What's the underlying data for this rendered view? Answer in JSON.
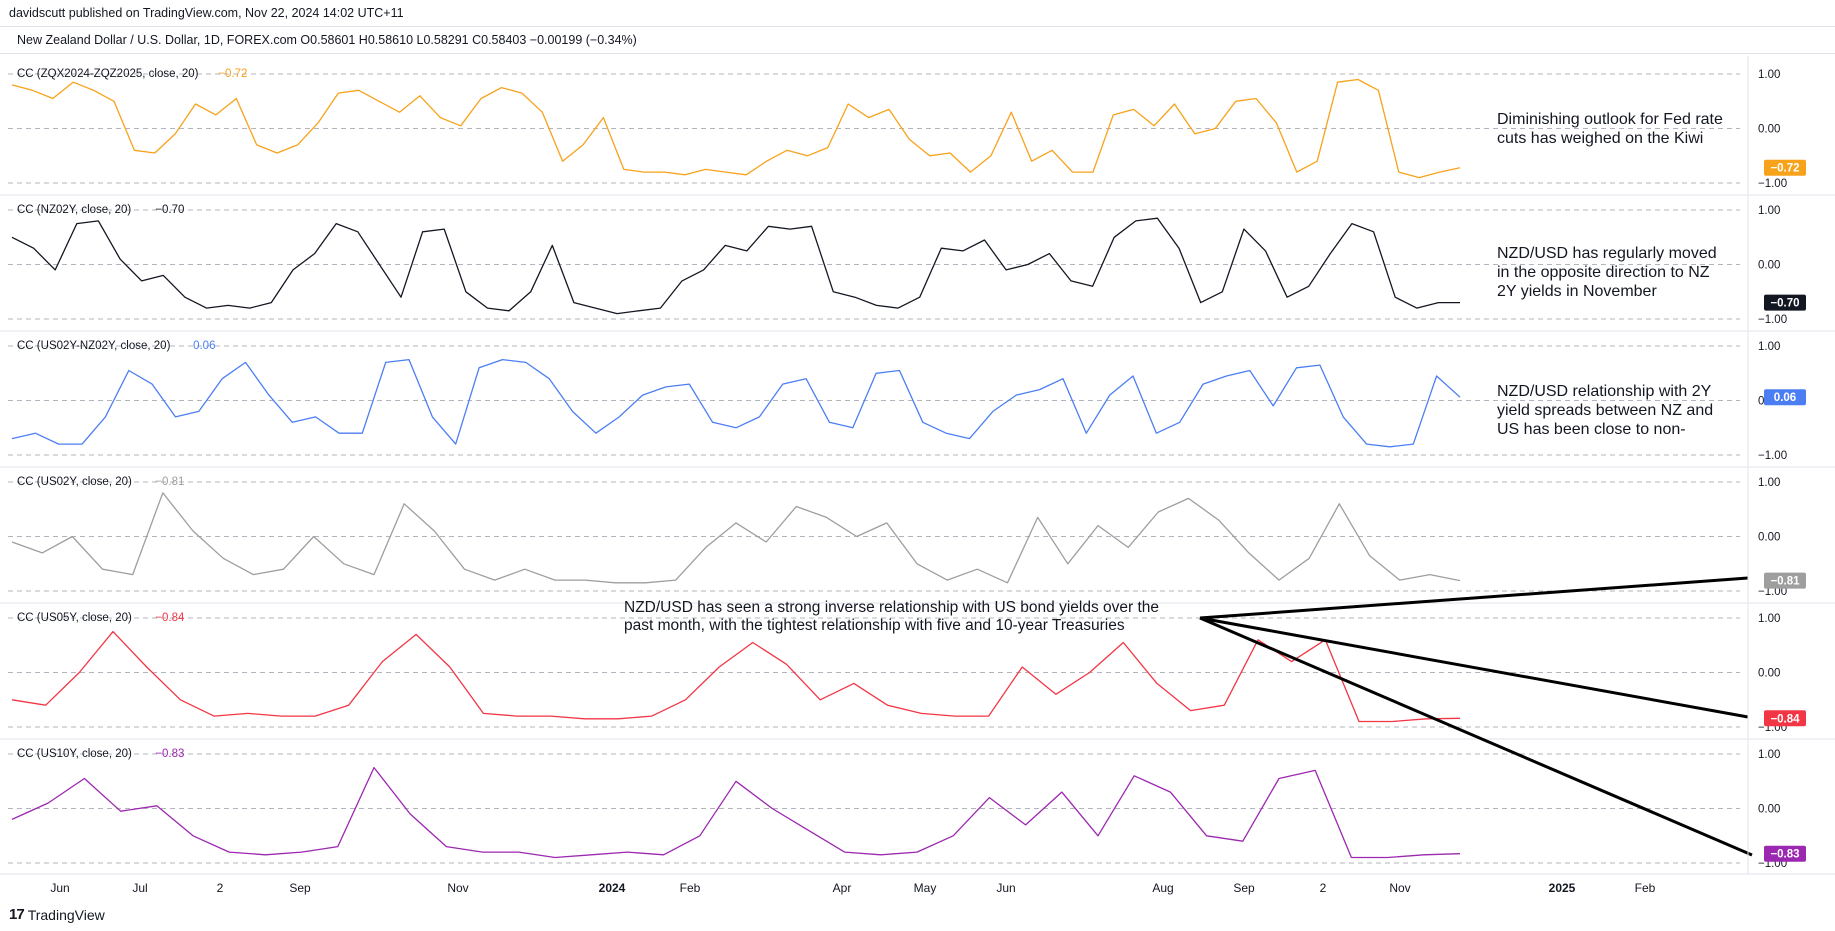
{
  "header": {
    "publisher": "davidscutt published on TradingView.com, Nov 22, 2024 14:02 UTC+11",
    "symbol_line": "New Zealand Dollar / U.S. Dollar, 1D, FOREX.com  O0.58601  H0.58610  L0.58291  C0.58403  −0.00199 (−0.34%)"
  },
  "footer": {
    "logo_glyph": "17",
    "brand": "TradingView"
  },
  "colors": {
    "orange": "#f7a21b",
    "black": "#131722",
    "blue": "#4c7ef3",
    "gray": "#9e9e9e",
    "red": "#f23645",
    "purple": "#9c27b0",
    "grid": "#b2b5be"
  },
  "chart_data": {
    "type": "line",
    "x_axis_labels": [
      "Jun",
      "Jul",
      "2",
      "Sep",
      "Nov",
      "2024",
      "Feb",
      "Apr",
      "May",
      "Jun",
      "Aug",
      "Sep",
      "2",
      "Nov",
      "2025",
      "Feb"
    ],
    "ylim": [
      -1,
      1
    ],
    "y_ticks": [
      "1.00",
      "0.00",
      "−1.00"
    ],
    "panes": [
      {
        "label": "CC (ZQX2024-ZQZ2025, close, 20)",
        "value_label": "−0.72",
        "color": "#f7a21b",
        "badge": "−0.72",
        "annotation": [
          "Diminishing outlook for Fed rate",
          "cuts has weighed on the Kiwi"
        ],
        "values": [
          0.8,
          0.7,
          0.55,
          0.85,
          0.7,
          0.5,
          -0.4,
          -0.45,
          -0.1,
          0.45,
          0.25,
          0.55,
          -0.3,
          -0.45,
          -0.3,
          0.1,
          0.65,
          0.7,
          0.5,
          0.3,
          0.6,
          0.2,
          0.05,
          0.55,
          0.75,
          0.65,
          0.3,
          -0.6,
          -0.3,
          0.2,
          -0.75,
          -0.8,
          -0.8,
          -0.85,
          -0.75,
          -0.8,
          -0.85,
          -0.6,
          -0.4,
          -0.5,
          -0.35,
          0.45,
          0.2,
          0.35,
          -0.2,
          -0.5,
          -0.45,
          -0.8,
          -0.5,
          0.3,
          -0.6,
          -0.4,
          -0.8,
          -0.8,
          0.25,
          0.35,
          0.05,
          0.45,
          -0.1,
          0.0,
          0.5,
          0.55,
          0.1,
          -0.8,
          -0.6,
          0.85,
          0.9,
          0.7,
          -0.8,
          -0.9,
          -0.8,
          -0.72
        ]
      },
      {
        "label": "CC (NZ02Y, close, 20)",
        "value_label": "−0.70",
        "color": "#131722",
        "badge": "−0.70",
        "annotation": [
          "NZD/USD has regularly moved",
          "in the opposite direction to NZ",
          "2Y yields in November"
        ],
        "values": [
          0.5,
          0.3,
          -0.1,
          0.75,
          0.8,
          0.1,
          -0.3,
          -0.2,
          -0.6,
          -0.8,
          -0.75,
          -0.8,
          -0.7,
          -0.1,
          0.2,
          0.75,
          0.6,
          0.0,
          -0.6,
          0.6,
          0.65,
          -0.5,
          -0.8,
          -0.85,
          -0.5,
          0.35,
          -0.7,
          -0.8,
          -0.9,
          -0.85,
          -0.8,
          -0.3,
          -0.1,
          0.35,
          0.25,
          0.7,
          0.65,
          0.7,
          -0.5,
          -0.6,
          -0.75,
          -0.8,
          -0.6,
          0.3,
          0.25,
          0.45,
          -0.1,
          0.0,
          0.2,
          -0.3,
          -0.4,
          0.5,
          0.8,
          0.85,
          0.3,
          -0.7,
          -0.5,
          0.65,
          0.25,
          -0.6,
          -0.4,
          0.2,
          0.75,
          0.6,
          -0.6,
          -0.8,
          -0.7,
          -0.7
        ]
      },
      {
        "label": "CC (US02Y-NZ02Y, close, 20)",
        "value_label": "0.06",
        "color": "#4c7ef3",
        "badge": "0.06",
        "annotation": [
          "NZD/USD relationship with 2Y",
          "yield spreads between NZ and",
          "US has been close to non-"
        ],
        "values": [
          -0.7,
          -0.6,
          -0.8,
          -0.8,
          -0.3,
          0.55,
          0.3,
          -0.3,
          -0.2,
          0.4,
          0.7,
          0.1,
          -0.4,
          -0.3,
          -0.6,
          -0.6,
          0.7,
          0.75,
          -0.3,
          -0.8,
          0.6,
          0.75,
          0.7,
          0.4,
          -0.2,
          -0.6,
          -0.3,
          0.1,
          0.25,
          0.3,
          -0.4,
          -0.5,
          -0.3,
          0.3,
          0.4,
          -0.4,
          -0.5,
          0.5,
          0.55,
          -0.4,
          -0.6,
          -0.7,
          -0.2,
          0.1,
          0.2,
          0.4,
          -0.6,
          0.1,
          0.45,
          -0.6,
          -0.4,
          0.3,
          0.45,
          0.55,
          -0.1,
          0.6,
          0.65,
          -0.3,
          -0.8,
          -0.85,
          -0.8,
          0.45,
          0.06
        ]
      },
      {
        "label": "CC (US02Y, close, 20)",
        "value_label": "−0.81",
        "color": "#9e9e9e",
        "badge": "−0.81",
        "values": [
          -0.1,
          -0.3,
          0.0,
          -0.6,
          -0.7,
          0.8,
          0.1,
          -0.4,
          -0.7,
          -0.6,
          0.0,
          -0.5,
          -0.7,
          0.6,
          0.1,
          -0.6,
          -0.8,
          -0.6,
          -0.8,
          -0.8,
          -0.85,
          -0.85,
          -0.8,
          -0.2,
          0.25,
          -0.1,
          0.55,
          0.35,
          0.0,
          0.25,
          -0.5,
          -0.8,
          -0.6,
          -0.85,
          0.35,
          -0.5,
          0.2,
          -0.2,
          0.45,
          0.7,
          0.3,
          -0.3,
          -0.8,
          -0.4,
          0.6,
          -0.35,
          -0.8,
          -0.7,
          -0.81
        ]
      },
      {
        "label": "CC (US05Y, close, 20)",
        "value_label": "−0.84",
        "color": "#f23645",
        "badge": "−0.84",
        "annotation": [
          "NZD/USD has seen a strong inverse relationship with US bond yields over the",
          "past month, with the tightest relationship with five and 10-year Treasuries"
        ],
        "values": [
          -0.5,
          -0.6,
          0.0,
          0.75,
          0.1,
          -0.5,
          -0.8,
          -0.75,
          -0.8,
          -0.8,
          -0.6,
          0.2,
          0.7,
          0.1,
          -0.75,
          -0.8,
          -0.8,
          -0.85,
          -0.85,
          -0.8,
          -0.5,
          0.1,
          0.55,
          0.15,
          -0.5,
          -0.2,
          -0.6,
          -0.75,
          -0.8,
          -0.8,
          0.1,
          -0.4,
          0.0,
          0.55,
          -0.2,
          -0.7,
          -0.6,
          0.6,
          0.2,
          0.6,
          -0.9,
          -0.9,
          -0.85,
          -0.84
        ]
      },
      {
        "label": "CC (US10Y, close, 20)",
        "value_label": "−0.83",
        "color": "#9c27b0",
        "badge": "−0.83",
        "values": [
          -0.2,
          0.1,
          0.55,
          -0.05,
          0.05,
          -0.5,
          -0.8,
          -0.85,
          -0.8,
          -0.7,
          0.75,
          -0.1,
          -0.7,
          -0.8,
          -0.8,
          -0.9,
          -0.85,
          -0.8,
          -0.85,
          -0.5,
          0.5,
          0.0,
          -0.4,
          -0.8,
          -0.85,
          -0.8,
          -0.5,
          0.2,
          -0.3,
          0.3,
          -0.5,
          0.6,
          0.3,
          -0.5,
          -0.6,
          0.55,
          0.7,
          -0.9,
          -0.9,
          -0.85,
          -0.83
        ]
      }
    ]
  }
}
